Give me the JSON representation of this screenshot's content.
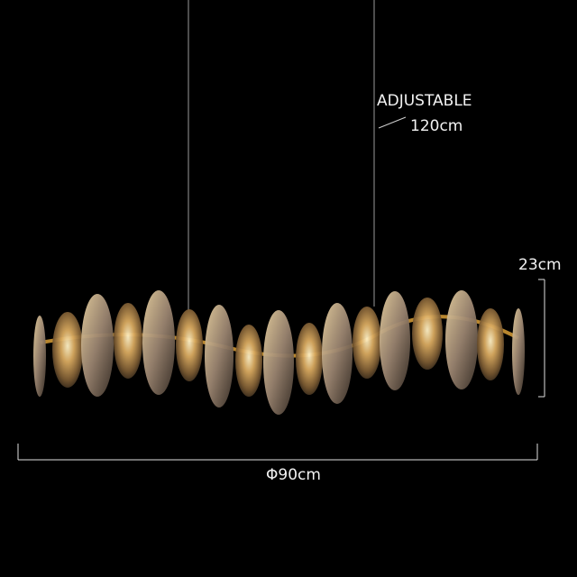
{
  "annotations": {
    "adjustable_label": "ADJUSTABLE",
    "cable_length": "120cm",
    "height": "23cm",
    "diameter": "Φ90cm"
  },
  "colors": {
    "background": "#000000",
    "crystal_amber": "#c89a55",
    "frame_gold": "#b8862e",
    "dimension_lines": "#e8e8e8"
  }
}
